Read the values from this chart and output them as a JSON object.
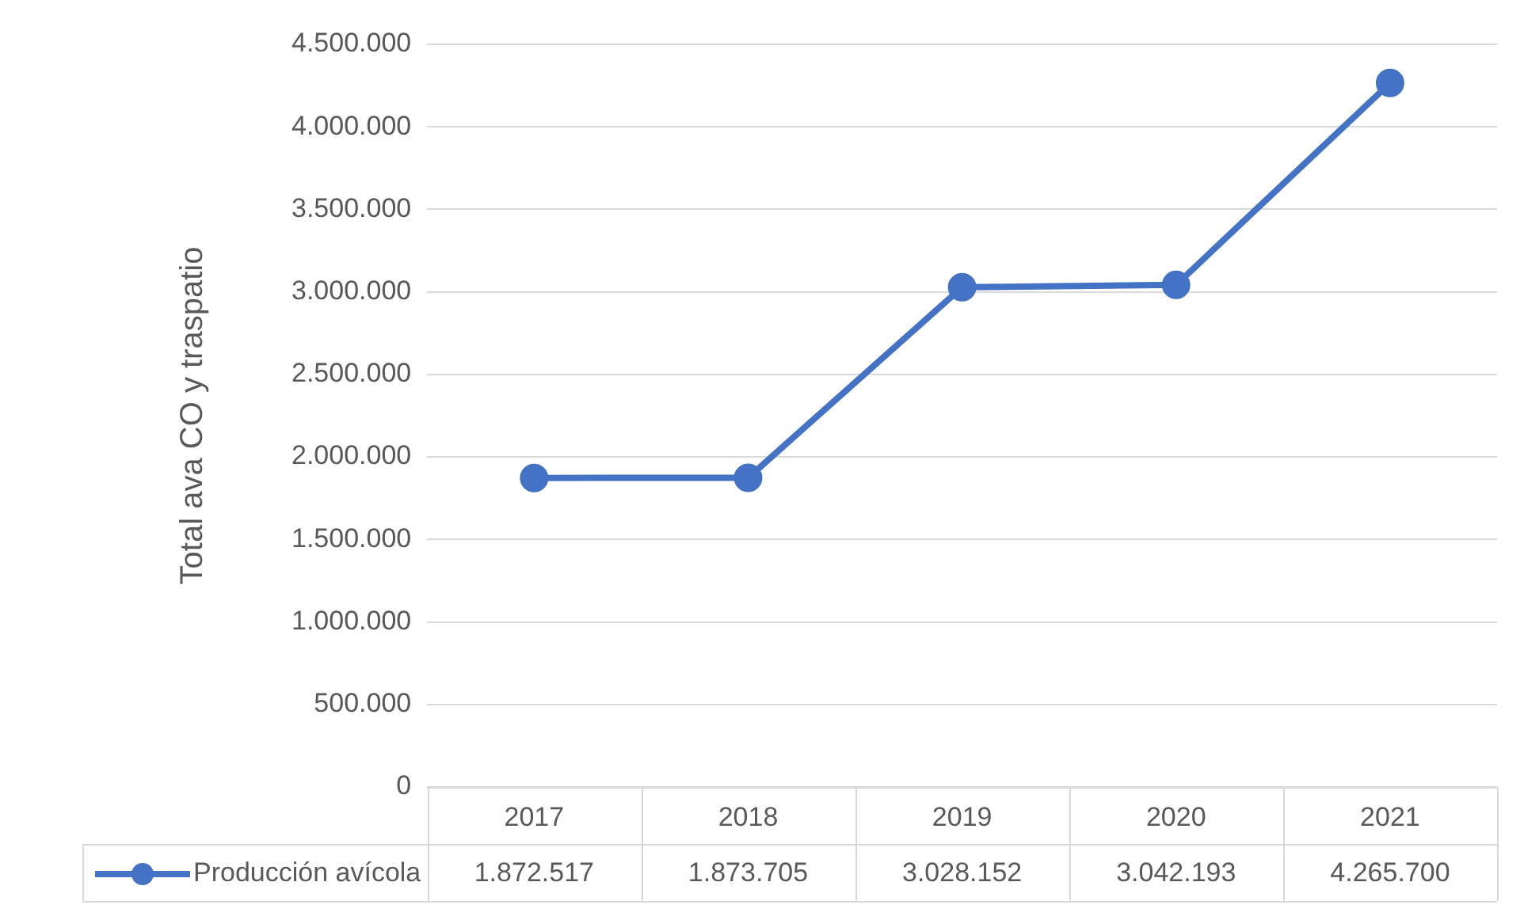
{
  "chart_data": {
    "type": "line",
    "ylabel": "Total ava CO y traspatio",
    "categories": [
      "2017",
      "2018",
      "2019",
      "2020",
      "2021"
    ],
    "series": [
      {
        "name": "Producción avícola",
        "color": "#4472c4",
        "values": [
          1872517,
          1873705,
          3028152,
          3042193,
          4265700
        ],
        "value_labels": [
          "1.872.517",
          "1.873.705",
          "3.028.152",
          "3.042.193",
          "4.265.700"
        ]
      }
    ],
    "ylim": [
      0,
      4500000
    ],
    "yticks": [
      {
        "value": 0,
        "label": "0"
      },
      {
        "value": 500000,
        "label": "500.000"
      },
      {
        "value": 1000000,
        "label": "1.000.000"
      },
      {
        "value": 1500000,
        "label": "1.500.000"
      },
      {
        "value": 2000000,
        "label": "2.000.000"
      },
      {
        "value": 2500000,
        "label": "2.500.000"
      },
      {
        "value": 3000000,
        "label": "3.000.000"
      },
      {
        "value": 3500000,
        "label": "3.500.000"
      },
      {
        "value": 4000000,
        "label": "4.000.000"
      },
      {
        "value": 4500000,
        "label": "4.500.000"
      }
    ],
    "grid": "y",
    "legend": "bottom",
    "marker": "circle",
    "line_style": "solid"
  }
}
